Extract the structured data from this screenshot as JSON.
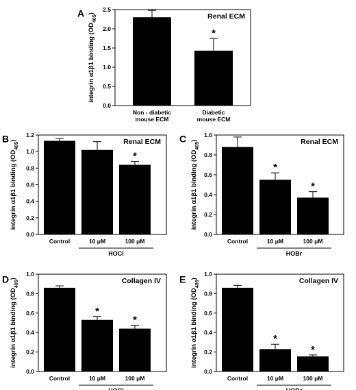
{
  "chart_data": [
    {
      "panel": "A",
      "type": "bar",
      "title": "Renal ECM",
      "ylabel": "integrin α1β1 binding (OD",
      "ylabel_sub": "405",
      "ylabel_close": ")",
      "ylim": [
        0,
        2.5
      ],
      "yticks": [
        "0.0",
        "0.5",
        "1.0",
        "1.5",
        "2.0",
        "2.5"
      ],
      "categories": [
        [
          "Non - diabetic",
          "mouse ECM"
        ],
        [
          "Diabetic",
          "mouse ECM"
        ]
      ],
      "values": [
        2.3,
        1.43
      ],
      "errors": [
        0.18,
        0.32
      ],
      "significance": [
        "",
        "*"
      ],
      "group_label": ""
    },
    {
      "panel": "B",
      "type": "bar",
      "title": "Renal ECM",
      "ylabel": "integrin α1β1 binding (OD",
      "ylabel_sub": "405",
      "ylabel_close": ")",
      "ylim": [
        0,
        1.2
      ],
      "yticks": [
        "0.0",
        "0.2",
        "0.4",
        "0.6",
        "0.8",
        "1.0",
        "1.2"
      ],
      "categories": [
        [
          "Control"
        ],
        [
          "10 μM"
        ],
        [
          "100 μM"
        ]
      ],
      "values": [
        1.13,
        1.02,
        0.84
      ],
      "errors": [
        0.03,
        0.1,
        0.04
      ],
      "significance": [
        "",
        "",
        "*"
      ],
      "group_label": "HOCl"
    },
    {
      "panel": "C",
      "type": "bar",
      "title": "Renal ECM",
      "ylabel": "integrin α1β1 binding (OD",
      "ylabel_sub": "405",
      "ylabel_close": ")",
      "ylim": [
        0,
        1.0
      ],
      "yticks": [
        "0.0",
        "0.2",
        "0.4",
        "0.6",
        "0.8",
        "1.0"
      ],
      "categories": [
        [
          "Control"
        ],
        [
          "10 μM"
        ],
        [
          "100 μM"
        ]
      ],
      "values": [
        0.88,
        0.55,
        0.37
      ],
      "errors": [
        0.1,
        0.07,
        0.06
      ],
      "significance": [
        "",
        "*",
        "*"
      ],
      "group_label": "HOBr"
    },
    {
      "panel": "D",
      "type": "bar",
      "title": "Collagen IV",
      "ylabel": "integrin α1β1 binding (OD",
      "ylabel_sub": "405",
      "ylabel_close": ")",
      "ylim": [
        0,
        1.0
      ],
      "yticks": [
        "0.0",
        "0.2",
        "0.4",
        "0.6",
        "0.8",
        "1.0"
      ],
      "categories": [
        [
          "Control"
        ],
        [
          "10 μM"
        ],
        [
          "100 μM"
        ]
      ],
      "values": [
        0.86,
        0.53,
        0.44
      ],
      "errors": [
        0.02,
        0.035,
        0.035
      ],
      "significance": [
        "",
        "*",
        "*"
      ],
      "group_label": "HOCl"
    },
    {
      "panel": "E",
      "type": "bar",
      "title": "Collagen IV",
      "ylabel": "integrin α1β1 binding (OD",
      "ylabel_sub": "405",
      "ylabel_close": ")",
      "ylim": [
        0,
        1.0
      ],
      "yticks": [
        "0.0",
        "0.2",
        "0.4",
        "0.6",
        "0.8",
        "1.0"
      ],
      "categories": [
        [
          "Control"
        ],
        [
          "10 μM"
        ],
        [
          "100 μM"
        ]
      ],
      "values": [
        0.86,
        0.23,
        0.155
      ],
      "errors": [
        0.025,
        0.05,
        0.015
      ],
      "significance": [
        "",
        "*",
        "*"
      ],
      "group_label": "HOBr"
    }
  ]
}
